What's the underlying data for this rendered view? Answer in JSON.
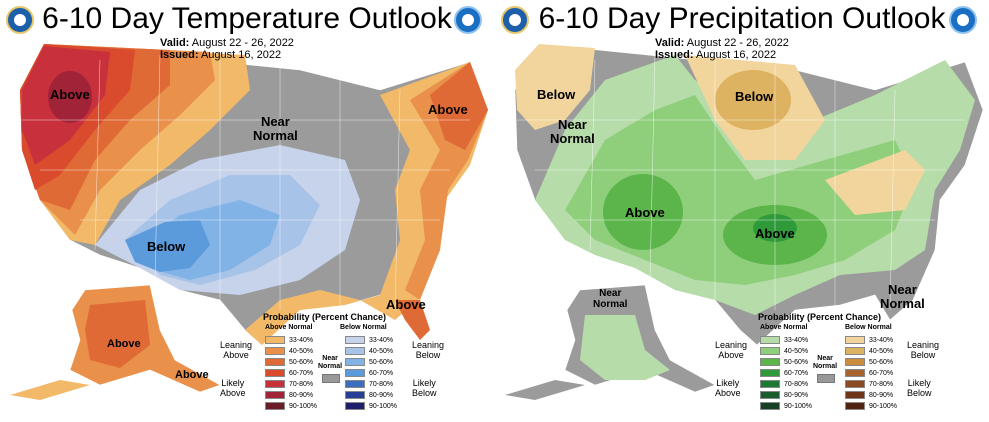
{
  "temp": {
    "title": "6-10 Day Temperature Outlook",
    "valid_label": "Valid:",
    "valid_value": "August 22 - 26, 2022",
    "issued_label": "Issued:",
    "issued_value": "August 16, 2022",
    "labels": {
      "above_nw": "Above",
      "near_normal": "Near\nNormal",
      "above_ne": "Above",
      "below": "Below",
      "above_fl": "Above",
      "above_ak": "Above",
      "above_ak2": "Above"
    },
    "legend": {
      "title": "Probability (Percent Chance)",
      "col_a": "Above Normal",
      "col_b": "Below Normal",
      "leaning_a": "Leaning\nAbove",
      "likely_a": "Likely\nAbove",
      "leaning_b": "Leaning\nBelow",
      "likely_b": "Likely\nBelow",
      "near_normal": "Near\nNormal",
      "ranges": [
        "33-40%",
        "40-50%",
        "50-60%",
        "60-70%",
        "70-80%",
        "80-90%",
        "90-100%"
      ],
      "colors_a": [
        "#f1b968",
        "#e9904a",
        "#e06a35",
        "#d94b2c",
        "#c8303b",
        "#a02338",
        "#6c1c26"
      ],
      "colors_b": [
        "#c6d3ea",
        "#a8c3e8",
        "#82b3e6",
        "#5b9bdb",
        "#3a6fbe",
        "#263f94",
        "#1e1f6b"
      ]
    }
  },
  "precip": {
    "title": "6-10 Day Precipitation Outlook",
    "valid_label": "Valid:",
    "valid_value": "August 22 - 26, 2022",
    "issued_label": "Issued:",
    "issued_value": "August 16, 2022",
    "labels": {
      "below_nw": "Below",
      "near_normal_nw": "Near\nNormal",
      "below_n": "Below",
      "above_w": "Above",
      "above_c": "Above",
      "near_normal_ak": "Near\nNormal",
      "near_normal_se": "Near\nNormal"
    },
    "legend": {
      "title": "Probability (Percent Chance)",
      "col_a": "Above Normal",
      "col_b": "Below Normal",
      "leaning_a": "Leaning\nAbove",
      "likely_a": "Likely\nAbove",
      "leaning_b": "Leaning\nBelow",
      "likely_b": "Likely\nBelow",
      "near_normal": "Near\nNormal",
      "ranges": [
        "33-40%",
        "40-50%",
        "50-60%",
        "60-70%",
        "70-80%",
        "80-90%",
        "90-100%"
      ],
      "colors_a": [
        "#b6dcaa",
        "#8fcf7c",
        "#5cb54a",
        "#2f9a3a",
        "#1d7a36",
        "#1b5c2e",
        "#173f21"
      ],
      "colors_b": [
        "#f1d59c",
        "#ddb261",
        "#cb8d3d",
        "#a8642e",
        "#8a4a22",
        "#6e3519",
        "#4f2512"
      ]
    }
  }
}
